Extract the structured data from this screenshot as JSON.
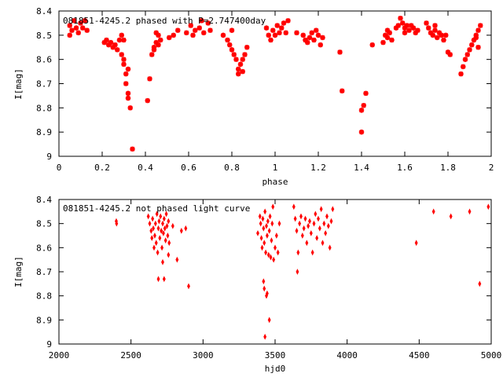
{
  "chart_data": [
    {
      "type": "scatter",
      "title": "081851-4245.2 phased with P=2.747400day",
      "xlabel": "phase",
      "ylabel": "I[mag]",
      "xlim": [
        0,
        2
      ],
      "ylim": [
        9,
        8.4
      ],
      "y_inverted": true,
      "x_ticks": [
        "0",
        "0.2",
        "0.4",
        "0.6",
        "0.8",
        "1",
        "1.2",
        "1.4",
        "1.6",
        "1.8",
        "2"
      ],
      "y_ticks": [
        "8.4",
        "8.5",
        "8.6",
        "8.7",
        "8.8",
        "8.9",
        "9"
      ],
      "marker": "star",
      "color": "#ff0000",
      "grid": false,
      "series": [
        {
          "points": [
            [
              0.05,
              8.46
            ],
            [
              0.06,
              8.48
            ],
            [
              0.07,
              8.44
            ],
            [
              0.08,
              8.47
            ],
            [
              0.09,
              8.49
            ],
            [
              0.1,
              8.45
            ],
            [
              0.11,
              8.47
            ],
            [
              0.12,
              8.44
            ],
            [
              0.13,
              8.48
            ],
            [
              0.05,
              8.5
            ],
            [
              0.21,
              8.53
            ],
            [
              0.22,
              8.52
            ],
            [
              0.23,
              8.54
            ],
            [
              0.24,
              8.53
            ],
            [
              0.25,
              8.55
            ],
            [
              0.26,
              8.54
            ],
            [
              0.27,
              8.56
            ],
            [
              0.28,
              8.52
            ],
            [
              0.29,
              8.58
            ],
            [
              0.3,
              8.6
            ],
            [
              0.29,
              8.5
            ],
            [
              0.3,
              8.52
            ],
            [
              0.31,
              8.66
            ],
            [
              0.31,
              8.7
            ],
            [
              0.32,
              8.74
            ],
            [
              0.32,
              8.76
            ],
            [
              0.33,
              8.8
            ],
            [
              0.32,
              8.64
            ],
            [
              0.3,
              8.62
            ],
            [
              0.34,
              8.97
            ],
            [
              0.41,
              8.77
            ],
            [
              0.42,
              8.68
            ],
            [
              0.43,
              8.58
            ],
            [
              0.44,
              8.55
            ],
            [
              0.45,
              8.53
            ],
            [
              0.46,
              8.5
            ],
            [
              0.47,
              8.52
            ],
            [
              0.44,
              8.56
            ],
            [
              0.45,
              8.49
            ],
            [
              0.46,
              8.54
            ],
            [
              0.51,
              8.51
            ],
            [
              0.53,
              8.5
            ],
            [
              0.55,
              8.48
            ],
            [
              0.59,
              8.49
            ],
            [
              0.61,
              8.46
            ],
            [
              0.63,
              8.48
            ],
            [
              0.65,
              8.47
            ],
            [
              0.67,
              8.49
            ],
            [
              0.69,
              8.45
            ],
            [
              0.7,
              8.48
            ],
            [
              0.62,
              8.5
            ],
            [
              0.66,
              8.44
            ],
            [
              0.76,
              8.5
            ],
            [
              0.78,
              8.52
            ],
            [
              0.79,
              8.54
            ],
            [
              0.8,
              8.56
            ],
            [
              0.81,
              8.58
            ],
            [
              0.82,
              8.6
            ],
            [
              0.83,
              8.64
            ],
            [
              0.84,
              8.62
            ],
            [
              0.85,
              8.6
            ],
            [
              0.86,
              8.58
            ],
            [
              0.87,
              8.55
            ],
            [
              0.85,
              8.65
            ],
            [
              0.83,
              8.66
            ],
            [
              0.8,
              8.48
            ],
            [
              0.96,
              8.47
            ],
            [
              0.97,
              8.5
            ],
            [
              0.98,
              8.52
            ],
            [
              0.99,
              8.48
            ],
            [
              1.0,
              8.5
            ],
            [
              1.01,
              8.46
            ],
            [
              1.02,
              8.49
            ],
            [
              1.03,
              8.47
            ],
            [
              1.04,
              8.45
            ],
            [
              1.05,
              8.49
            ],
            [
              1.06,
              8.44
            ],
            [
              1.1,
              8.49
            ],
            [
              1.13,
              8.5
            ],
            [
              1.14,
              8.52
            ],
            [
              1.15,
              8.53
            ],
            [
              1.16,
              8.51
            ],
            [
              1.17,
              8.49
            ],
            [
              1.18,
              8.52
            ],
            [
              1.19,
              8.48
            ],
            [
              1.2,
              8.5
            ],
            [
              1.21,
              8.54
            ],
            [
              1.22,
              8.51
            ],
            [
              1.3,
              8.57
            ],
            [
              1.31,
              8.73
            ],
            [
              1.4,
              8.9
            ],
            [
              1.4,
              8.81
            ],
            [
              1.41,
              8.79
            ],
            [
              1.42,
              8.74
            ],
            [
              1.45,
              8.54
            ],
            [
              1.5,
              8.53
            ],
            [
              1.51,
              8.5
            ],
            [
              1.52,
              8.48
            ],
            [
              1.53,
              8.49
            ],
            [
              1.54,
              8.52
            ],
            [
              1.52,
              8.51
            ],
            [
              1.56,
              8.47
            ],
            [
              1.57,
              8.46
            ],
            [
              1.58,
              8.43
            ],
            [
              1.59,
              8.45
            ],
            [
              1.6,
              8.47
            ],
            [
              1.61,
              8.46
            ],
            [
              1.62,
              8.48
            ],
            [
              1.63,
              8.46
            ],
            [
              1.64,
              8.47
            ],
            [
              1.65,
              8.49
            ],
            [
              1.66,
              8.48
            ],
            [
              1.6,
              8.49
            ],
            [
              1.7,
              8.45
            ],
            [
              1.71,
              8.47
            ],
            [
              1.72,
              8.49
            ],
            [
              1.73,
              8.5
            ],
            [
              1.74,
              8.48
            ],
            [
              1.75,
              8.51
            ],
            [
              1.76,
              8.49
            ],
            [
              1.77,
              8.5
            ],
            [
              1.78,
              8.52
            ],
            [
              1.79,
              8.5
            ],
            [
              1.74,
              8.46
            ],
            [
              1.8,
              8.57
            ],
            [
              1.81,
              8.58
            ],
            [
              1.86,
              8.66
            ],
            [
              1.87,
              8.63
            ],
            [
              1.88,
              8.6
            ],
            [
              1.89,
              8.58
            ],
            [
              1.9,
              8.56
            ],
            [
              1.91,
              8.54
            ],
            [
              1.92,
              8.52
            ],
            [
              1.93,
              8.5
            ],
            [
              1.94,
              8.48
            ],
            [
              1.95,
              8.46
            ],
            [
              1.93,
              8.51
            ],
            [
              1.94,
              8.55
            ]
          ]
        }
      ]
    },
    {
      "type": "scatter",
      "title": "081851-4245.2 not phased light curve",
      "xlabel": "hjd0",
      "ylabel": "I[mag]",
      "xlim": [
        2000,
        5000
      ],
      "ylim": [
        9,
        8.4
      ],
      "y_inverted": true,
      "x_ticks": [
        "2000",
        "2500",
        "3000",
        "3500",
        "4000",
        "4500",
        "5000"
      ],
      "y_ticks": [
        "8.4",
        "8.5",
        "8.6",
        "8.7",
        "8.8",
        "8.9",
        "9"
      ],
      "marker": "diamond",
      "color": "#ff0000",
      "grid": false,
      "series": [
        {
          "points": [
            [
              2398,
              8.49
            ],
            [
              2400,
              8.5
            ],
            [
              2620,
              8.47
            ],
            [
              2630,
              8.5
            ],
            [
              2640,
              8.53
            ],
            [
              2645,
              8.56
            ],
            [
              2650,
              8.48
            ],
            [
              2655,
              8.52
            ],
            [
              2660,
              8.6
            ],
            [
              2665,
              8.55
            ],
            [
              2670,
              8.5
            ],
            [
              2675,
              8.58
            ],
            [
              2680,
              8.46
            ],
            [
              2685,
              8.62
            ],
            [
              2690,
              8.52
            ],
            [
              2695,
              8.49
            ],
            [
              2700,
              8.56
            ],
            [
              2705,
              8.47
            ],
            [
              2710,
              8.53
            ],
            [
              2715,
              8.6
            ],
            [
              2720,
              8.5
            ],
            [
              2725,
              8.54
            ],
            [
              2730,
              8.48
            ],
            [
              2735,
              8.52
            ],
            [
              2740,
              8.57
            ],
            [
              2745,
              8.46
            ],
            [
              2750,
              8.51
            ],
            [
              2755,
              8.55
            ],
            [
              2760,
              8.49
            ],
            [
              2765,
              8.58
            ],
            [
              2690,
              8.73
            ],
            [
              2730,
              8.73
            ],
            [
              2720,
              8.66
            ],
            [
              2760,
              8.63
            ],
            [
              2790,
              8.51
            ],
            [
              2820,
              8.65
            ],
            [
              2850,
              8.53
            ],
            [
              2880,
              8.52
            ],
            [
              2900,
              8.76
            ],
            [
              3380,
              8.54
            ],
            [
              3395,
              8.47
            ],
            [
              3400,
              8.5
            ],
            [
              3405,
              8.56
            ],
            [
              3410,
              8.6
            ],
            [
              3415,
              8.48
            ],
            [
              3420,
              8.52
            ],
            [
              3425,
              8.58
            ],
            [
              3430,
              8.45
            ],
            [
              3435,
              8.62
            ],
            [
              3440,
              8.51
            ],
            [
              3445,
              8.55
            ],
            [
              3450,
              8.49
            ],
            [
              3455,
              8.63
            ],
            [
              3460,
              8.53
            ],
            [
              3465,
              8.47
            ],
            [
              3470,
              8.64
            ],
            [
              3475,
              8.57
            ],
            [
              3480,
              8.5
            ],
            [
              3485,
              8.43
            ],
            [
              3490,
              8.65
            ],
            [
              3500,
              8.6
            ],
            [
              3510,
              8.55
            ],
            [
              3520,
              8.62
            ],
            [
              3530,
              8.5
            ],
            [
              3420,
              8.74
            ],
            [
              3425,
              8.77
            ],
            [
              3440,
              8.8
            ],
            [
              3445,
              8.79
            ],
            [
              3460,
              8.9
            ],
            [
              3430,
              8.97
            ],
            [
              3630,
              8.43
            ],
            [
              3640,
              8.48
            ],
            [
              3650,
              8.53
            ],
            [
              3655,
              8.7
            ],
            [
              3660,
              8.62
            ],
            [
              3670,
              8.5
            ],
            [
              3680,
              8.47
            ],
            [
              3690,
              8.55
            ],
            [
              3700,
              8.52
            ],
            [
              3710,
              8.48
            ],
            [
              3720,
              8.58
            ],
            [
              3730,
              8.51
            ],
            [
              3740,
              8.49
            ],
            [
              3750,
              8.54
            ],
            [
              3760,
              8.62
            ],
            [
              3770,
              8.5
            ],
            [
              3780,
              8.46
            ],
            [
              3790,
              8.56
            ],
            [
              3800,
              8.48
            ],
            [
              3810,
              8.52
            ],
            [
              3820,
              8.44
            ],
            [
              3830,
              8.58
            ],
            [
              3840,
              8.5
            ],
            [
              3850,
              8.54
            ],
            [
              3860,
              8.47
            ],
            [
              3870,
              8.51
            ],
            [
              3880,
              8.6
            ],
            [
              3890,
              8.49
            ],
            [
              3900,
              8.44
            ],
            [
              4480,
              8.58
            ],
            [
              4600,
              8.45
            ],
            [
              4720,
              8.47
            ],
            [
              4850,
              8.45
            ],
            [
              4920,
              8.75
            ],
            [
              4980,
              8.43
            ]
          ]
        }
      ]
    }
  ]
}
